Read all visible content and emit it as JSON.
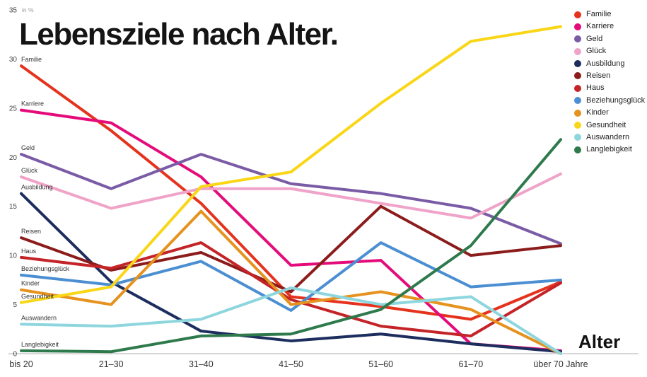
{
  "title": "Lebensziele nach Alter.",
  "x_axis_title": "Alter",
  "chart_data": {
    "type": "line",
    "title": "Lebensziele nach Alter.",
    "xlabel": "Alter",
    "ylabel": "in %",
    "ylim": [
      0,
      35
    ],
    "ytick_interval": 5,
    "grid": false,
    "legend_position": "top-right",
    "categories": [
      "bis 20",
      "21–30",
      "31–40",
      "41–50",
      "51–60",
      "61–70",
      "über 70 Jahre"
    ],
    "series": [
      {
        "name": "Familie",
        "color": "#e5321d",
        "values": [
          29.3,
          22.7,
          15.3,
          5.8,
          4.8,
          3.5,
          7.3
        ]
      },
      {
        "name": "Karriere",
        "color": "#e40b7a",
        "values": [
          24.8,
          23.5,
          18.0,
          9.0,
          9.5,
          1.0,
          0.3
        ]
      },
      {
        "name": "Geld",
        "color": "#7a5ba5",
        "values": [
          20.3,
          16.8,
          20.3,
          17.3,
          16.3,
          14.8,
          11.2
        ]
      },
      {
        "name": "Glück",
        "color": "#f0a3c8",
        "values": [
          18.0,
          14.8,
          16.8,
          16.8,
          15.3,
          13.8,
          18.3
        ]
      },
      {
        "name": "Ausbildung",
        "color": "#1c2d5e",
        "values": [
          16.3,
          7.3,
          2.3,
          1.3,
          2.0,
          1.0,
          0.2
        ]
      },
      {
        "name": "Reisen",
        "color": "#8c1c1c",
        "values": [
          11.8,
          8.5,
          10.3,
          6.3,
          15.0,
          10.0,
          11.0
        ]
      },
      {
        "name": "Haus",
        "color": "#c42428",
        "values": [
          9.8,
          8.7,
          11.3,
          5.5,
          2.8,
          1.8,
          7.2
        ]
      },
      {
        "name": "Beziehungsglück",
        "color": "#4b8fd2",
        "values": [
          8.0,
          7.0,
          9.4,
          4.4,
          11.3,
          6.8,
          7.5
        ]
      },
      {
        "name": "Kinder",
        "color": "#e6921e",
        "values": [
          6.5,
          5.0,
          14.5,
          5.0,
          6.3,
          4.5,
          0.0
        ]
      },
      {
        "name": "Gesundheit",
        "color": "#f9d616",
        "values": [
          5.2,
          6.8,
          17.0,
          18.5,
          25.5,
          31.8,
          33.3
        ]
      },
      {
        "name": "Auswandern",
        "color": "#8ed6de",
        "values": [
          3.0,
          2.8,
          3.5,
          6.7,
          5.0,
          5.8,
          0.0
        ]
      },
      {
        "name": "Langlebigkeit",
        "color": "#2f7a4d",
        "values": [
          0.3,
          0.2,
          1.8,
          2.0,
          4.5,
          11.0,
          21.8
        ]
      }
    ]
  }
}
